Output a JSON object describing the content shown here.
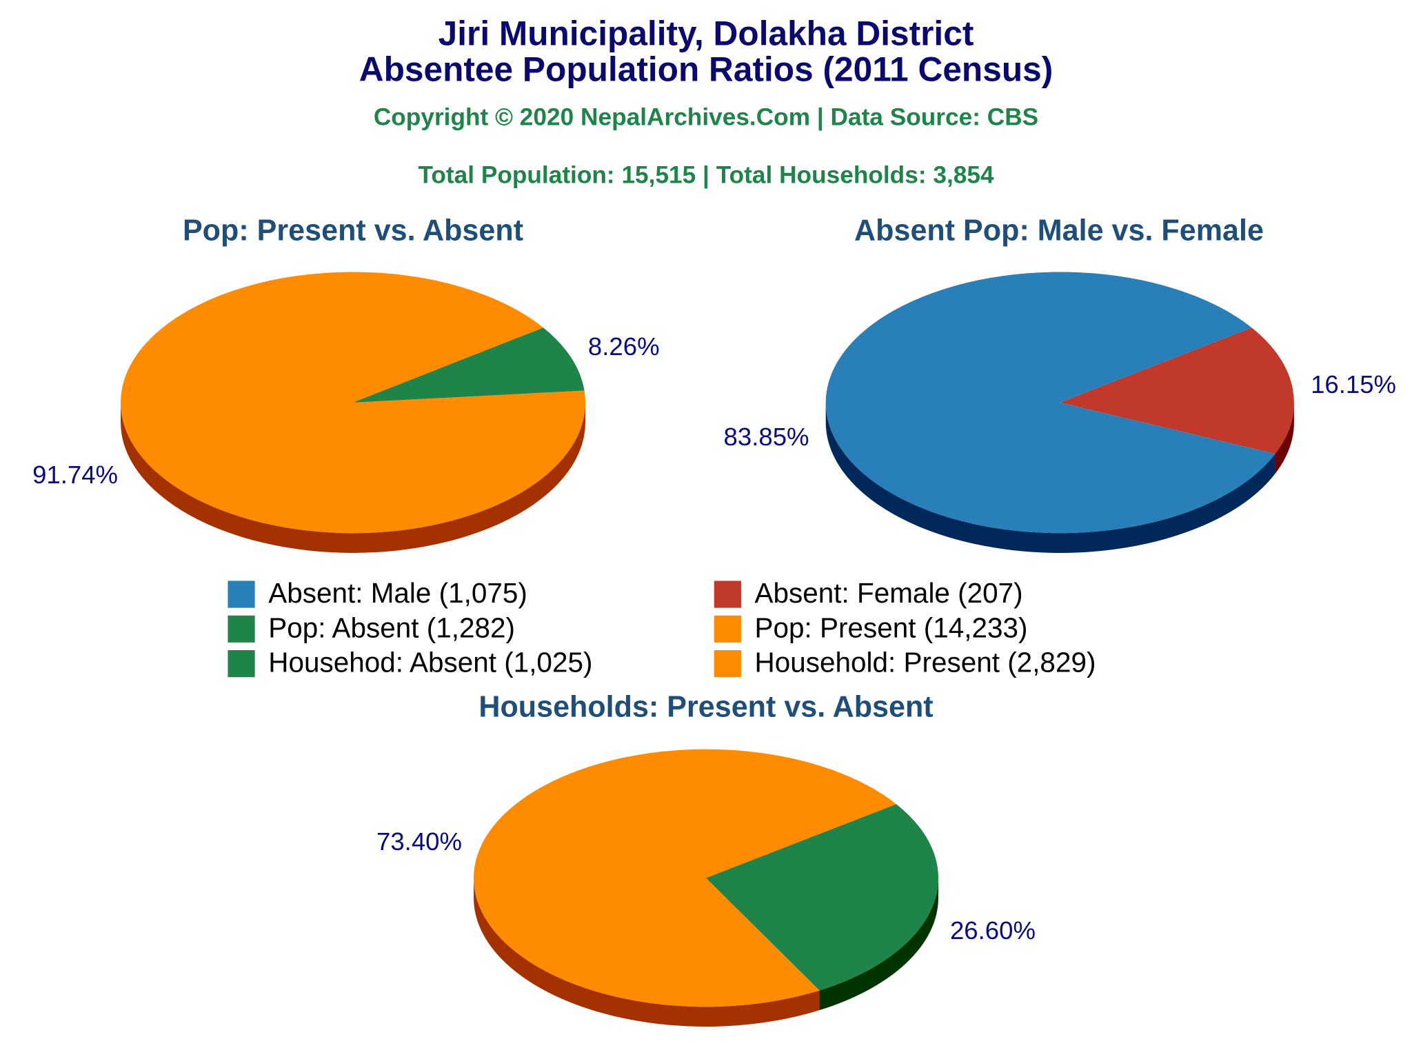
{
  "header": {
    "title_lines": [
      "Jiri Municipality, Dolakha District",
      "Absentee Population Ratios (2011 Census)"
    ],
    "copyright": "Copyright © 2020 NepalArchives.Com | Data Source: CBS",
    "totals": "Total Population: 15,515 | Total Households: 3,854"
  },
  "chart_data": [
    {
      "type": "pie",
      "title": "Pop: Present vs. Absent",
      "categories": [
        "Pop: Present (14,233)",
        "Pop: Absent (1,282)"
      ],
      "values": [
        91.74,
        8.26
      ],
      "value_labels": [
        "91.74%",
        "8.26%"
      ],
      "colors": [
        "#ff8c00",
        "#1e8449"
      ],
      "side_colors": [
        "#a33200",
        "#003300"
      ]
    },
    {
      "type": "pie",
      "title": "Absent Pop: Male vs. Female",
      "categories": [
        "Absent: Male (1,075)",
        "Absent: Female (207)"
      ],
      "values": [
        83.85,
        16.15
      ],
      "value_labels": [
        "83.85%",
        "16.15%"
      ],
      "colors": [
        "#2980b9",
        "#c0392b"
      ],
      "side_colors": [
        "#00285a",
        "#6b0000"
      ]
    },
    {
      "type": "pie",
      "title": "Households: Present vs. Absent",
      "categories": [
        "Household: Present (2,829)",
        "Househod: Absent (1,025)"
      ],
      "values": [
        73.4,
        26.6
      ],
      "value_labels": [
        "73.40%",
        "26.60%"
      ],
      "colors": [
        "#ff8c00",
        "#1e8449"
      ],
      "side_colors": [
        "#a33200",
        "#003300"
      ]
    }
  ]
}
